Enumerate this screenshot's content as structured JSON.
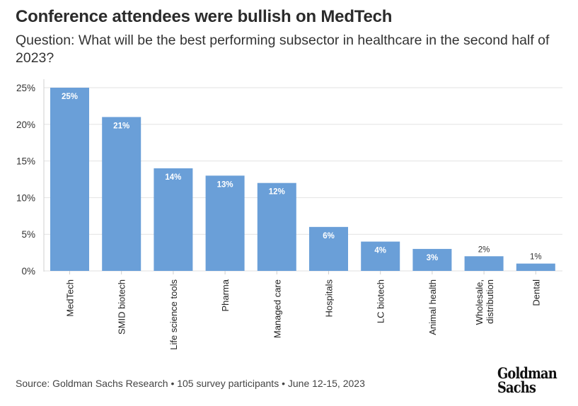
{
  "header": {
    "title": "Conference attendees were bullish on MedTech",
    "subtitle": "Question: What will be the best performing subsector in healthcare in the second half of 2023?"
  },
  "footer": {
    "source": "Source: Goldman Sachs Research • 105 survey participants • June 12-15, 2023",
    "logo_line1": "Goldman",
    "logo_line2": "Sachs"
  },
  "colors": {
    "bar": "#6a9fd8",
    "grid": "#e2e2e2",
    "inside_label": "#ffffff",
    "outside_label": "#333333"
  },
  "chart_data": {
    "type": "bar",
    "title": "Conference attendees were bullish on MedTech",
    "subtitle": "Question: What will be the best performing subsector in healthcare in the second half of 2023?",
    "xlabel": "",
    "ylabel": "",
    "categories": [
      "MedTech",
      "SMID biotech",
      "Life science tools",
      "Pharma",
      "Managed care",
      "Hospitals",
      "LC biotech",
      "Animal health",
      "Wholesale, distribution",
      "Dental"
    ],
    "values": [
      25,
      21,
      14,
      13,
      12,
      6,
      4,
      3,
      2,
      1
    ],
    "data_labels": [
      "25%",
      "21%",
      "14%",
      "13%",
      "12%",
      "6%",
      "4%",
      "3%",
      "2%",
      "1%"
    ],
    "y_ticks": [
      0,
      5,
      10,
      15,
      20,
      25
    ],
    "y_tick_labels": [
      "0%",
      "5%",
      "10%",
      "15%",
      "20%",
      "25%"
    ],
    "ylim": [
      0,
      25
    ],
    "grid": true,
    "unit": "%"
  }
}
